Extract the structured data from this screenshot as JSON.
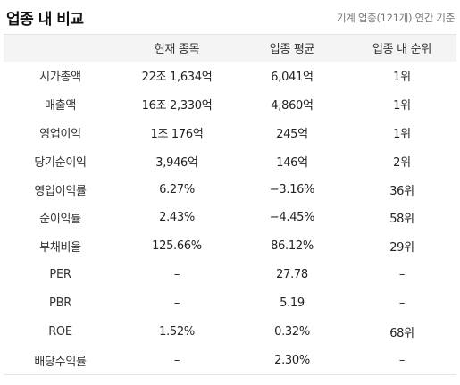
{
  "header": {
    "title": "업종 내 비교",
    "subtitle": "기계 업종(121개) 연간 기준"
  },
  "table": {
    "columns": [
      "",
      "현재 종목",
      "업종 평균",
      "업종 내 순위"
    ],
    "rows": [
      {
        "label": "시가총액",
        "current": "22조 1,634억",
        "average": "6,041억",
        "rank": "1위"
      },
      {
        "label": "매출액",
        "current": "16조 2,330억",
        "average": "4,860억",
        "rank": "1위"
      },
      {
        "label": "영업이익",
        "current": "1조 176억",
        "average": "245억",
        "rank": "1위"
      },
      {
        "label": "당기순이익",
        "current": "3,946억",
        "average": "146억",
        "rank": "2위"
      },
      {
        "label": "영업이익률",
        "current": "6.27%",
        "average": "−3.16%",
        "rank": "36위"
      },
      {
        "label": "순이익률",
        "current": "2.43%",
        "average": "−4.45%",
        "rank": "58위"
      },
      {
        "label": "부채비율",
        "current": "125.66%",
        "average": "86.12%",
        "rank": "29위"
      },
      {
        "label": "PER",
        "current": "–",
        "average": "27.78",
        "rank": "–"
      },
      {
        "label": "PBR",
        "current": "–",
        "average": "5.19",
        "rank": "–"
      },
      {
        "label": "ROE",
        "current": "1.52%",
        "average": "0.32%",
        "rank": "68위"
      },
      {
        "label": "배당수익률",
        "current": "–",
        "average": "2.30%",
        "rank": "–"
      }
    ]
  },
  "colors": {
    "negative": "#2f6fd6",
    "header_bg": "#f4f4f4"
  }
}
